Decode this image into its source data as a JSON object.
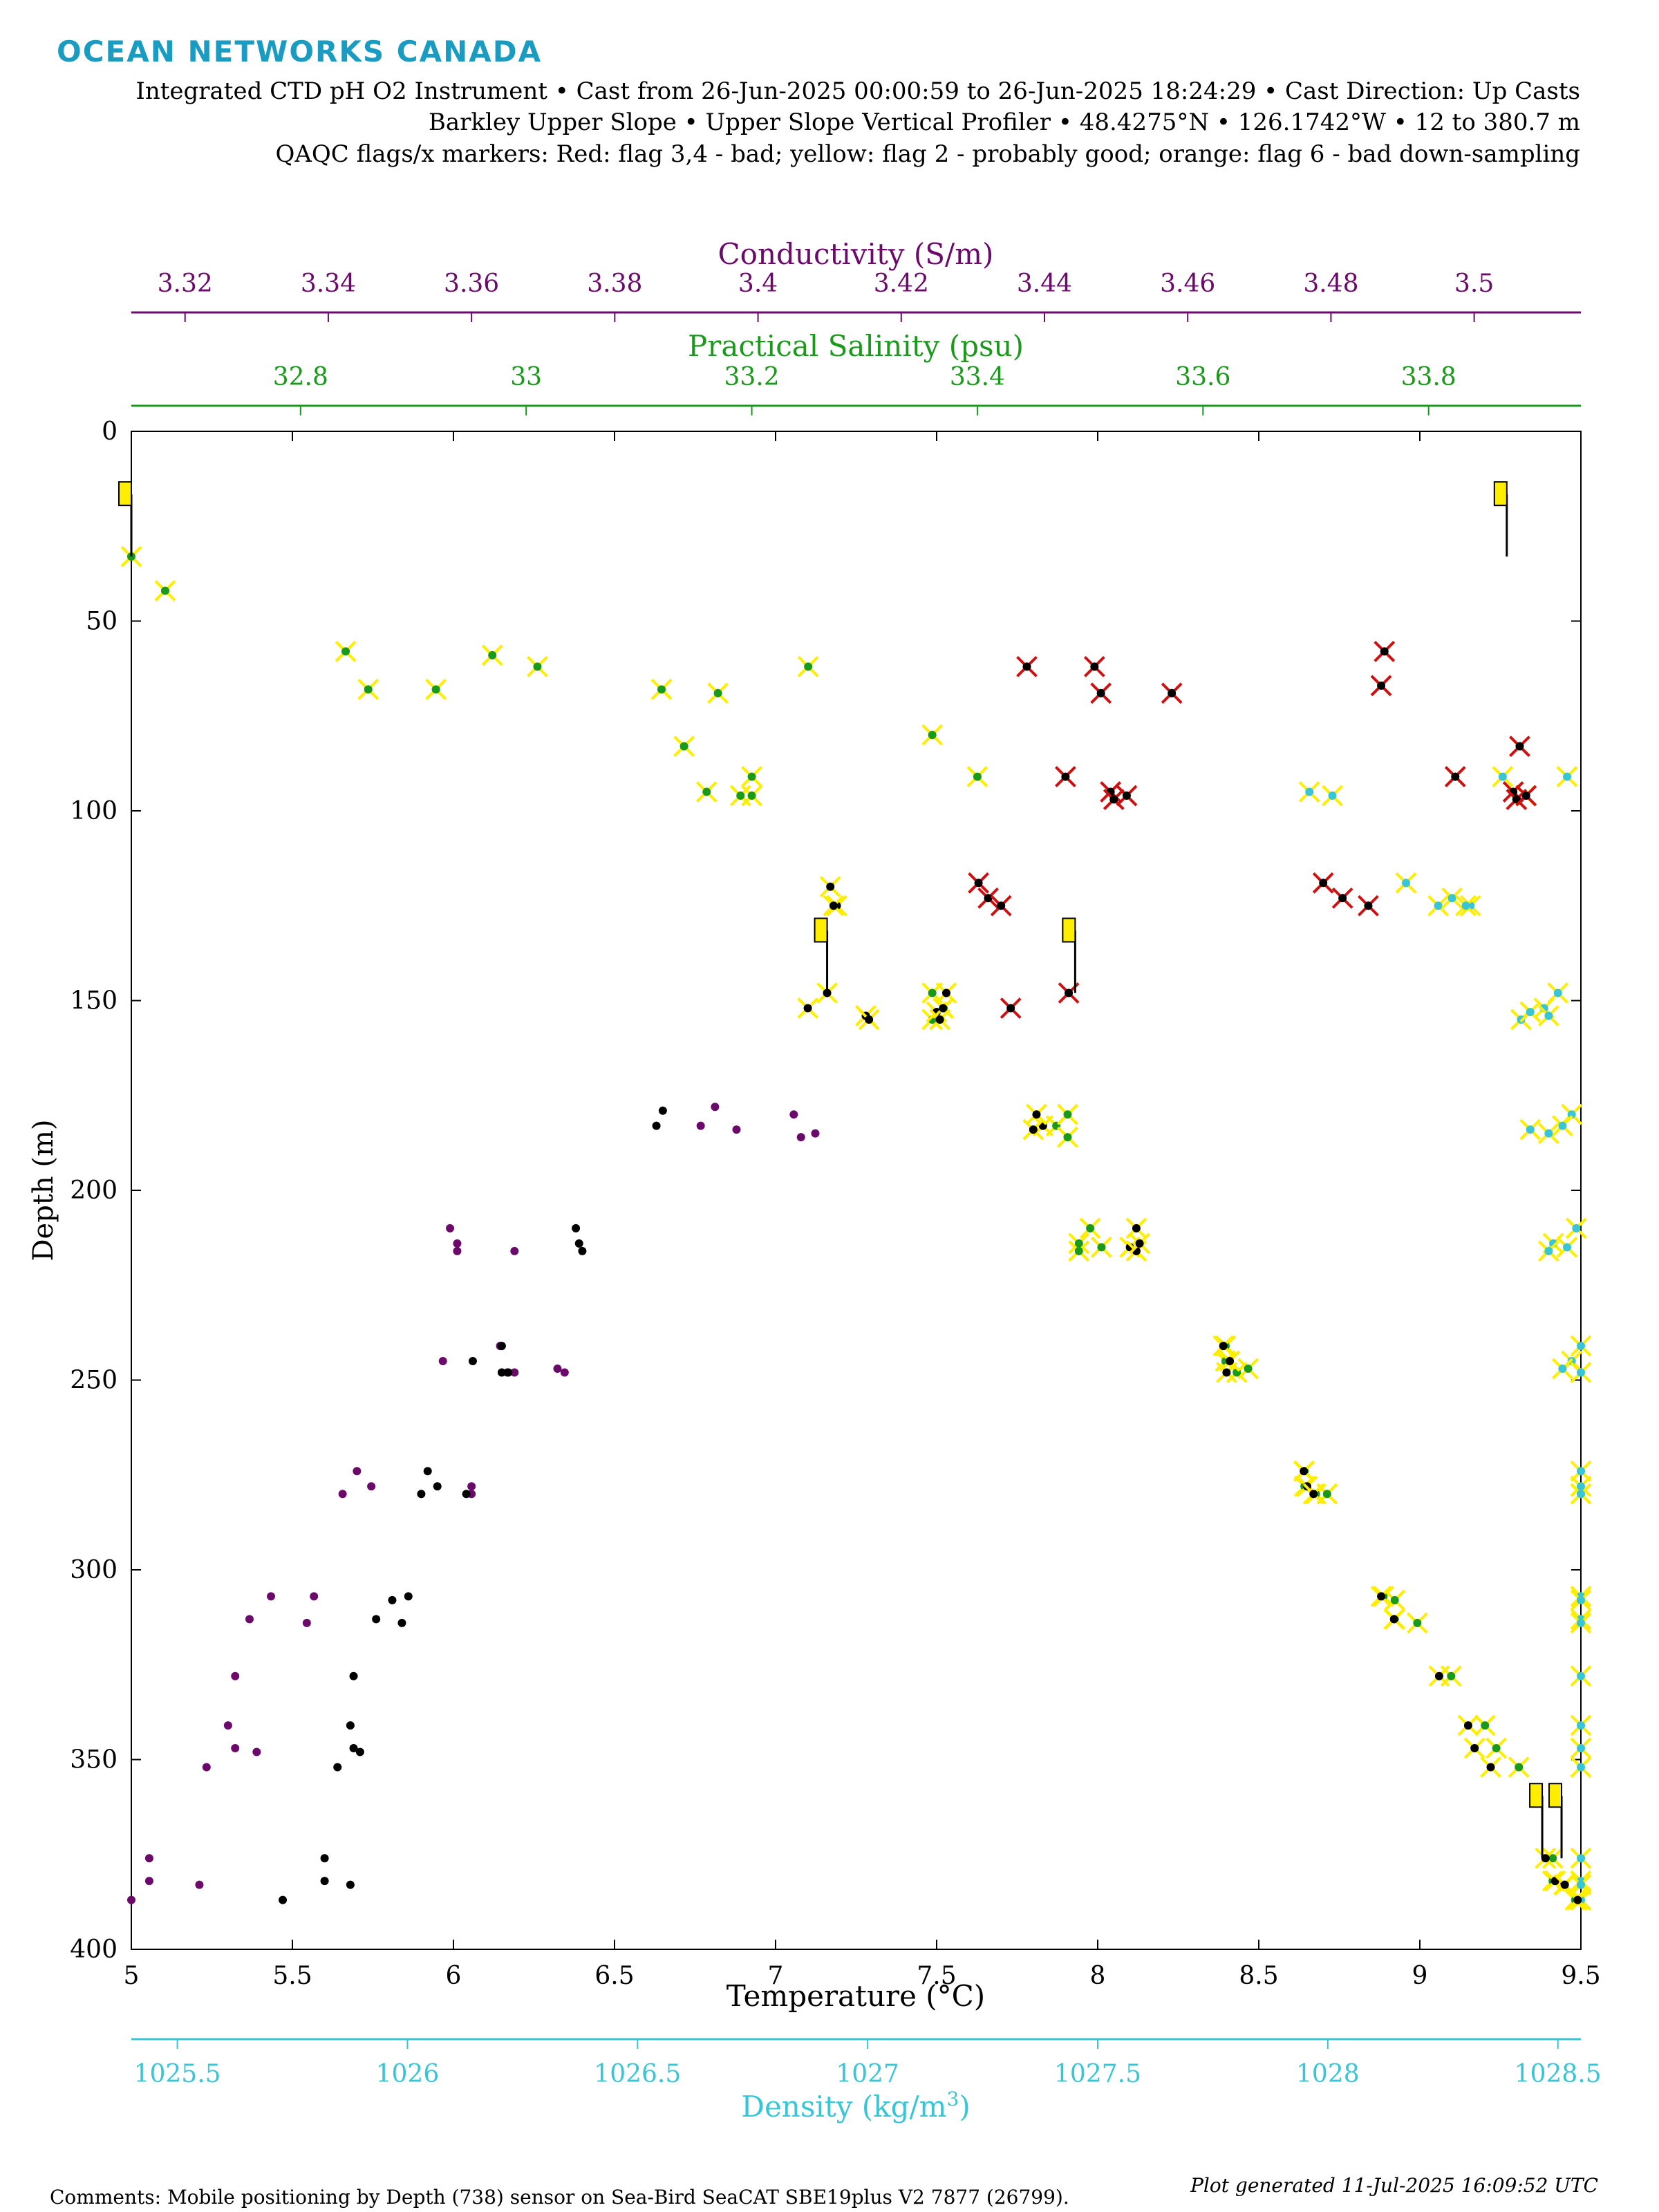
{
  "brand": "OCEAN NETWORKS CANADA",
  "colors": {
    "brand": "#1a9cc2",
    "conductivity": "#6b0a6b",
    "salinity": "#1a9a1a",
    "temperature": "#000000",
    "density": "#38c6d6",
    "flag_yellow": "#ffee00",
    "flag_red": "#d01010",
    "flag_orange": "#ff9900"
  },
  "header": {
    "line1": "Integrated CTD pH O2 Instrument • Cast from 26-Jun-2025 00:00:59 to 26-Jun-2025 18:24:29 • Cast Direction: Up Casts",
    "line2": "Barkley Upper Slope • Upper Slope Vertical Profiler • 48.4275°N • 126.1742°W • 12 to 380.7 m",
    "line3": "QAQC flags/x markers: Red: flag 3,4 - bad; yellow: flag 2 - probably good; orange: flag 6 - bad down-sampling"
  },
  "footer": {
    "comments": "Comments: Mobile positioning by Depth (738) sensor on Sea-Bird SeaCAT SBE19plus V2 7877 (26799).",
    "generated": "Plot generated 11-Jul-2025 16:09:52 UTC"
  },
  "chart_data": {
    "type": "scatter",
    "y_axis": {
      "label": "Depth (m)",
      "range": [
        0,
        400
      ],
      "ticks": [
        0,
        50,
        100,
        150,
        200,
        250,
        300,
        350,
        400
      ],
      "reversed": true
    },
    "axes": {
      "temperature": {
        "label": "Temperature (°C)",
        "range": [
          5,
          9.5
        ],
        "ticks": [
          "5",
          "5.5",
          "6",
          "6.5",
          "7",
          "7.5",
          "8",
          "8.5",
          "9",
          "9.5"
        ],
        "position": "bottom"
      },
      "density": {
        "label": "Density (kg/m",
        "label_sup": "3",
        "label_end": ")",
        "range": [
          1025.4,
          1028.55
        ],
        "ticks": [
          "1025.5",
          "1026",
          "1026.5",
          "1027",
          "1027.5",
          "1028",
          "1028.5"
        ],
        "position": "bottom-offset"
      },
      "conductivity": {
        "label": "Conductivity (S/m)",
        "range": [
          3.3125,
          3.5149
        ],
        "ticks": [
          "3.32",
          "3.34",
          "3.36",
          "3.38",
          "3.4",
          "3.42",
          "3.44",
          "3.46",
          "3.48",
          "3.5"
        ],
        "position": "top"
      },
      "salinity": {
        "label": "Practical Salinity (psu)",
        "range": [
          32.65,
          33.935
        ],
        "ticks": [
          "32.8",
          "33",
          "33.2",
          "33.4",
          "33.6",
          "33.8"
        ],
        "position": "top-offset"
      }
    },
    "series": [
      {
        "name": "Conductivity",
        "axis": "conductivity",
        "flag": "good",
        "points": [
          [
            3.356,
            245
          ],
          [
            3.36,
            278
          ],
          [
            3.36,
            280
          ],
          [
            3.344,
            274
          ],
          [
            3.342,
            280
          ],
          [
            3.346,
            278
          ],
          [
            3.332,
            307
          ],
          [
            3.338,
            307
          ],
          [
            3.329,
            313
          ],
          [
            3.337,
            314
          ],
          [
            3.327,
            328
          ],
          [
            3.326,
            341
          ],
          [
            3.327,
            347
          ],
          [
            3.33,
            348
          ],
          [
            3.323,
            352
          ],
          [
            3.315,
            376
          ],
          [
            3.315,
            382
          ],
          [
            3.322,
            383
          ],
          [
            3.3125,
            387
          ],
          [
            3.357,
            210
          ],
          [
            3.358,
            214
          ],
          [
            3.358,
            216
          ],
          [
            3.366,
            216
          ],
          [
            3.364,
            241
          ],
          [
            3.365,
            248
          ],
          [
            3.366,
            248
          ],
          [
            3.372,
            247
          ],
          [
            3.373,
            248
          ],
          [
            3.394,
            178
          ],
          [
            3.397,
            184
          ],
          [
            3.392,
            183
          ],
          [
            3.405,
            180
          ],
          [
            3.408,
            185
          ],
          [
            3.406,
            186
          ]
        ]
      },
      {
        "name": "Temperature",
        "axis": "temperature",
        "flag": "good",
        "points": [
          [
            6.65,
            179
          ],
          [
            6.63,
            183
          ],
          [
            6.38,
            210
          ],
          [
            6.39,
            214
          ],
          [
            6.4,
            216
          ],
          [
            6.06,
            245
          ],
          [
            6.15,
            241
          ],
          [
            6.15,
            248
          ],
          [
            6.17,
            248
          ],
          [
            5.92,
            274
          ],
          [
            5.95,
            278
          ],
          [
            5.9,
            280
          ],
          [
            6.04,
            280
          ],
          [
            5.86,
            307
          ],
          [
            5.81,
            308
          ],
          [
            5.76,
            313
          ],
          [
            5.84,
            314
          ],
          [
            5.69,
            328
          ],
          [
            5.68,
            341
          ],
          [
            5.69,
            347
          ],
          [
            5.71,
            348
          ],
          [
            5.64,
            352
          ],
          [
            5.6,
            376
          ],
          [
            5.6,
            382
          ],
          [
            5.68,
            383
          ],
          [
            5.47,
            387
          ]
        ]
      },
      {
        "name": "Salinity",
        "axis": "salinity",
        "flag": "yellow",
        "points": [
          [
            32.65,
            33
          ],
          [
            32.68,
            42
          ],
          [
            32.84,
            58
          ],
          [
            32.86,
            68
          ],
          [
            32.92,
            68
          ],
          [
            32.97,
            59
          ],
          [
            33.01,
            62
          ],
          [
            33.12,
            68
          ],
          [
            33.17,
            69
          ],
          [
            33.14,
            83
          ],
          [
            33.16,
            95
          ],
          [
            33.19,
            96
          ],
          [
            33.2,
            91
          ],
          [
            33.2,
            96
          ],
          [
            33.25,
            62
          ],
          [
            33.36,
            80
          ],
          [
            33.4,
            91
          ],
          [
            33.36,
            148
          ],
          [
            33.37,
            152
          ],
          [
            33.36,
            155
          ],
          [
            33.47,
            183
          ],
          [
            33.48,
            180
          ],
          [
            33.48,
            186
          ],
          [
            33.5,
            210
          ],
          [
            33.49,
            214
          ],
          [
            33.49,
            216
          ],
          [
            33.51,
            215
          ],
          [
            33.62,
            241
          ],
          [
            33.62,
            245
          ],
          [
            33.63,
            248
          ],
          [
            33.64,
            247
          ],
          [
            33.69,
            274
          ],
          [
            33.69,
            278
          ],
          [
            33.7,
            280
          ],
          [
            33.71,
            280
          ],
          [
            33.76,
            307
          ],
          [
            33.77,
            308
          ],
          [
            33.77,
            313
          ],
          [
            33.79,
            314
          ],
          [
            33.82,
            328
          ],
          [
            33.85,
            341
          ],
          [
            33.86,
            347
          ],
          [
            33.88,
            352
          ],
          [
            33.91,
            376
          ],
          [
            33.91,
            382
          ],
          [
            33.92,
            383
          ],
          [
            33.93,
            387
          ]
        ]
      },
      {
        "name": "Density",
        "axis": "density",
        "flag": "yellow",
        "points": [
          [
            1027.96,
            95
          ],
          [
            1028.01,
            96
          ],
          [
            1028.38,
            91
          ],
          [
            1028.52,
            91
          ],
          [
            1028.43,
            96
          ],
          [
            1028.17,
            119
          ],
          [
            1028.24,
            125
          ],
          [
            1028.27,
            123
          ],
          [
            1028.31,
            125
          ],
          [
            1028.3,
            125
          ],
          [
            1028.5,
            148
          ],
          [
            1028.47,
            152
          ],
          [
            1028.48,
            154
          ],
          [
            1028.42,
            155
          ],
          [
            1028.44,
            153
          ],
          [
            1028.53,
            180
          ],
          [
            1028.51,
            183
          ],
          [
            1028.48,
            185
          ],
          [
            1028.44,
            184
          ],
          [
            1028.54,
            210
          ],
          [
            1028.49,
            214
          ],
          [
            1028.48,
            216
          ],
          [
            1028.52,
            215
          ],
          [
            1028.55,
            241
          ],
          [
            1028.53,
            245
          ],
          [
            1028.51,
            247
          ],
          [
            1028.55,
            248
          ],
          [
            1028.55,
            274
          ],
          [
            1028.55,
            278
          ],
          [
            1028.55,
            280
          ],
          [
            1028.55,
            280
          ],
          [
            1028.55,
            307
          ],
          [
            1028.55,
            308
          ],
          [
            1028.55,
            313
          ],
          [
            1028.55,
            314
          ],
          [
            1028.55,
            328
          ],
          [
            1028.55,
            341
          ],
          [
            1028.55,
            347
          ],
          [
            1028.55,
            352
          ],
          [
            1028.55,
            376
          ],
          [
            1028.55,
            382
          ],
          [
            1028.55,
            383
          ],
          [
            1028.55,
            387
          ]
        ]
      },
      {
        "name": "Temperature",
        "axis": "temperature",
        "flag": "yellow",
        "points": [
          [
            7.17,
            120
          ],
          [
            7.19,
            125
          ],
          [
            7.18,
            125
          ],
          [
            7.1,
            152
          ],
          [
            7.16,
            148
          ],
          [
            7.28,
            154
          ],
          [
            7.29,
            155
          ],
          [
            7.5,
            153
          ],
          [
            7.51,
            155
          ],
          [
            7.52,
            152
          ],
          [
            7.53,
            148
          ],
          [
            7.83,
            183
          ],
          [
            7.81,
            180
          ],
          [
            7.8,
            184
          ],
          [
            8.12,
            210
          ],
          [
            8.1,
            215
          ],
          [
            8.12,
            216
          ],
          [
            8.13,
            214
          ],
          [
            8.39,
            241
          ],
          [
            8.41,
            245
          ],
          [
            8.4,
            248
          ],
          [
            8.64,
            274
          ],
          [
            8.65,
            278
          ],
          [
            8.67,
            280
          ],
          [
            8.88,
            307
          ],
          [
            8.92,
            313
          ],
          [
            9.06,
            328
          ],
          [
            9.15,
            341
          ],
          [
            9.17,
            347
          ],
          [
            9.22,
            352
          ],
          [
            9.39,
            376
          ],
          [
            9.42,
            382
          ],
          [
            9.45,
            383
          ],
          [
            9.49,
            387
          ]
        ]
      },
      {
        "name": "Temperature",
        "axis": "temperature",
        "flag": "red",
        "points": [
          [
            7.78,
            62
          ],
          [
            7.99,
            62
          ],
          [
            8.01,
            69
          ],
          [
            8.23,
            69
          ],
          [
            7.9,
            91
          ],
          [
            8.04,
            95
          ],
          [
            8.05,
            97
          ],
          [
            8.09,
            96
          ],
          [
            7.63,
            119
          ],
          [
            7.66,
            123
          ],
          [
            7.7,
            125
          ],
          [
            7.73,
            152
          ],
          [
            7.91,
            148
          ],
          [
            8.7,
            119
          ],
          [
            8.76,
            123
          ],
          [
            8.84,
            125
          ],
          [
            9.11,
            91
          ],
          [
            9.29,
            95
          ],
          [
            9.3,
            97
          ],
          [
            9.33,
            96
          ],
          [
            9.31,
            83
          ],
          [
            8.89,
            58
          ],
          [
            8.88,
            67
          ]
        ]
      }
    ],
    "flag_markers": [
      {
        "axis": "temperature",
        "x": 5.0,
        "depth": 33
      },
      {
        "axis": "temperature",
        "x": 9.27,
        "depth": 33
      },
      {
        "axis": "temperature",
        "x": 7.16,
        "depth": 148
      },
      {
        "axis": "temperature",
        "x": 7.93,
        "depth": 148
      },
      {
        "axis": "temperature",
        "x": 9.38,
        "depth": 376
      },
      {
        "axis": "temperature",
        "x": 9.44,
        "depth": 376
      }
    ]
  }
}
